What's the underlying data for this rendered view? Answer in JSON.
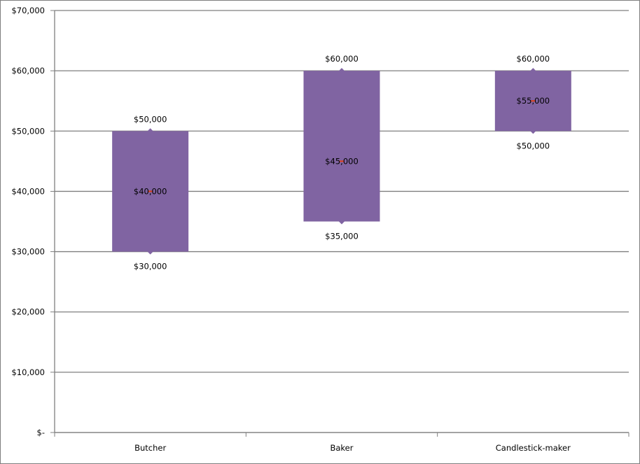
{
  "chart_data": {
    "type": "bar",
    "subtype": "floating-range",
    "categories": [
      "Butcher",
      "Baker",
      "Candlestick-maker"
    ],
    "series": [
      {
        "values_low": [
          30000,
          35000,
          50000
        ],
        "values_high": [
          50000,
          60000,
          60000
        ],
        "values_mid": [
          40000,
          45000,
          55000
        ]
      }
    ],
    "labels": {
      "high": [
        "$50,000",
        "$60,000",
        "$60,000"
      ],
      "low": [
        "$30,000",
        "$35,000",
        "$50,000"
      ],
      "mid": [
        "$40,000",
        "$45,000",
        "$55,000"
      ]
    },
    "yticks": [
      0,
      10000,
      20000,
      30000,
      40000,
      50000,
      60000,
      70000
    ],
    "ytick_labels": [
      "$-",
      "$10,000",
      "$20,000",
      "$30,000",
      "$40,000",
      "$50,000",
      "$60,000",
      "$70,000"
    ],
    "ylim": [
      0,
      70000
    ],
    "title": "",
    "xlabel": "",
    "ylabel": "",
    "grid": true,
    "legend": "none",
    "colors": {
      "bar": "#8064a2",
      "gridline": "#7f7f7f",
      "mid_marker": "#e0401a",
      "marker": "#8064a2"
    }
  }
}
